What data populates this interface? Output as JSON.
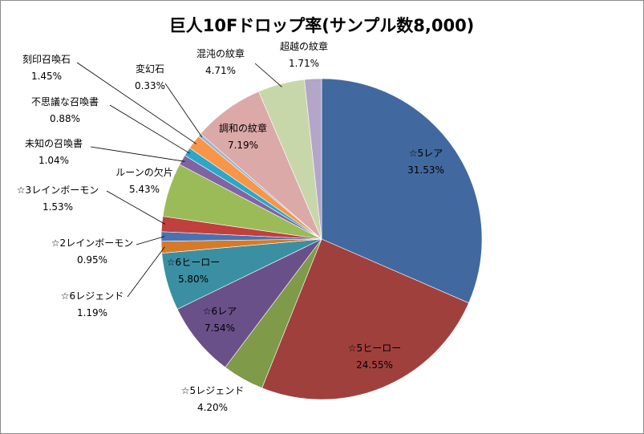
{
  "chart_data": {
    "type": "pie",
    "title": "巨人10Fドロップ率(サンプル数8,000)",
    "start_angle_deg": 0,
    "direction": "clockwise",
    "legend": "none",
    "slices": [
      {
        "name": "☆5レア",
        "value_label": "31.53%",
        "value": 31.53,
        "color": "#4169A0"
      },
      {
        "name": "☆5ヒーロー",
        "value_label": "24.55%",
        "value": 24.55,
        "color": "#A0403D"
      },
      {
        "name": "☆5レジェンド",
        "value_label": "4.20%",
        "value": 4.2,
        "color": "#7F9A48"
      },
      {
        "name": "☆6レア",
        "value_label": "7.54%",
        "value": 7.54,
        "color": "#6A5089"
      },
      {
        "name": "☆6ヒーロー",
        "value_label": "5.80%",
        "value": 5.8,
        "color": "#3B8FA3"
      },
      {
        "name": "☆6レジェンド",
        "value_label": "1.19%",
        "value": 1.19,
        "color": "#D47B2A"
      },
      {
        "name": "☆2レインボーモン",
        "value_label": "0.95%",
        "value": 0.95,
        "color": "#4A72B2"
      },
      {
        "name": "☆3レインボーモン",
        "value_label": "1.53%",
        "value": 1.53,
        "color": "#C0403D"
      },
      {
        "name": "ルーンの欠片",
        "value_label": "5.43%",
        "value": 5.43,
        "color": "#9BBB59"
      },
      {
        "name": "未知の召喚書",
        "value_label": "1.04%",
        "value": 1.04,
        "color": "#8064A2"
      },
      {
        "name": "不思議な召喚書",
        "value_label": "0.88%",
        "value": 0.88,
        "color": "#2EA6C6"
      },
      {
        "name": "刻印召喚石",
        "value_label": "1.45%",
        "value": 1.45,
        "color": "#F79646"
      },
      {
        "name": "変幻石",
        "value_label": "0.33%",
        "value": 0.33,
        "color": "#95B3D7"
      },
      {
        "name": "調和の紋章",
        "value_label": "7.19%",
        "value": 7.19,
        "color": "#DBA9A8"
      },
      {
        "name": "混沌の紋章",
        "value_label": "4.71%",
        "value": 4.71,
        "color": "#C8D7A9"
      },
      {
        "name": "超越の紋章",
        "value_label": "1.71%",
        "value": 1.71,
        "color": "#B3A6C9"
      }
    ]
  }
}
